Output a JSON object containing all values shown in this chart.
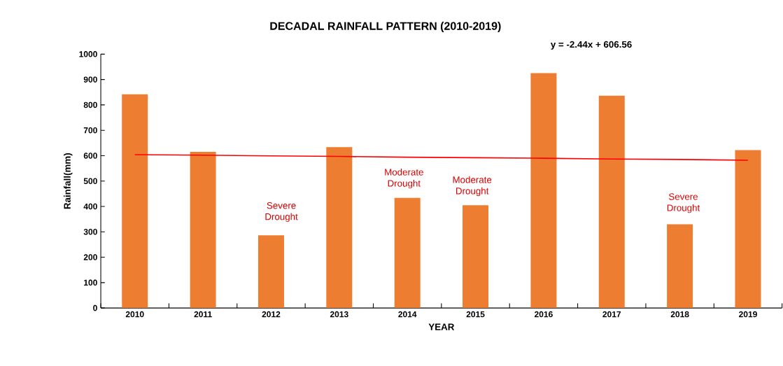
{
  "chart_data": {
    "type": "bar",
    "title": "DECADAL RAINFALL PATTERN (2010-2019)",
    "xlabel": "YEAR",
    "ylabel": "Rainfall(mm)",
    "categories": [
      "2010",
      "2011",
      "2012",
      "2013",
      "2014",
      "2015",
      "2016",
      "2017",
      "2018",
      "2019"
    ],
    "series": [
      {
        "color": "#ed7d31",
        "values": [
          842,
          615,
          286,
          634,
          434,
          405,
          925,
          836,
          330,
          622
        ]
      },
      {
        "type": "line",
        "color": "#ff0000",
        "values": [
          604,
          602,
          599,
          597,
          594,
          592,
          590,
          587,
          585,
          582
        ]
      }
    ],
    "ylim": [
      0,
      1000
    ],
    "yticks": [
      0,
      100,
      200,
      300,
      400,
      500,
      600,
      700,
      800,
      900,
      1000
    ],
    "grid": false,
    "annotations": [
      "y = -2.44x + 606.56",
      "Severe Drought",
      "Moderate Drought",
      "Moderate Drought",
      "Severe Drought"
    ]
  }
}
